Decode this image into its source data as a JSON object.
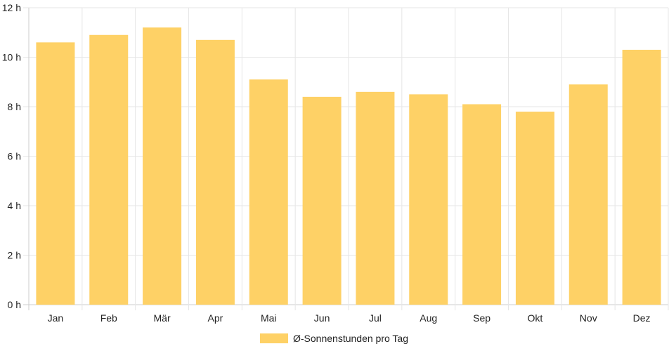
{
  "chart_data": {
    "type": "bar",
    "categories": [
      "Jan",
      "Feb",
      "Mär",
      "Apr",
      "Mai",
      "Jun",
      "Jul",
      "Aug",
      "Sep",
      "Okt",
      "Nov",
      "Dez"
    ],
    "series": [
      {
        "name": "Ø-Sonnenstunden pro Tag",
        "values": [
          10.6,
          10.9,
          11.2,
          10.7,
          9.1,
          8.4,
          8.6,
          8.5,
          8.1,
          7.8,
          8.9,
          10.3
        ],
        "color": "#fed166"
      }
    ],
    "ylim": [
      0,
      12
    ],
    "yticks": [
      0,
      2,
      4,
      6,
      8,
      10,
      12
    ],
    "ytick_suffix": " h",
    "grid": true,
    "legend_position": "bottom",
    "grid_color": "#e6e6e6",
    "axis_color": "#cccccc",
    "text_color": "#222222"
  }
}
